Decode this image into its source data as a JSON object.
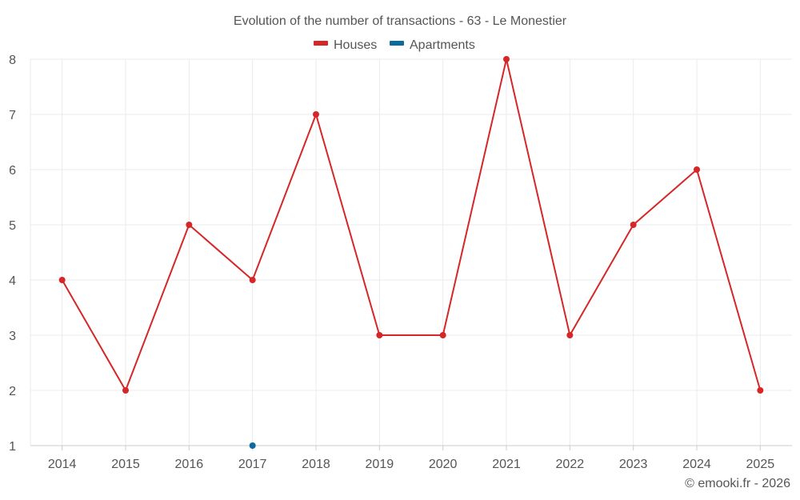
{
  "chart_data": {
    "type": "line",
    "title": "Evolution of the number of transactions - 63 - Le Monestier",
    "categories": [
      "2014",
      "2015",
      "2016",
      "2017",
      "2018",
      "2019",
      "2020",
      "2021",
      "2022",
      "2023",
      "2024",
      "2025"
    ],
    "ylim": [
      1,
      8
    ],
    "yticks": [
      "1",
      "2",
      "3",
      "4",
      "5",
      "6",
      "7",
      "8"
    ],
    "grid": true,
    "legend_position": "top-center",
    "series": [
      {
        "name": "Houses",
        "color": "#d62728",
        "values": [
          4,
          2,
          5,
          4,
          7,
          3,
          3,
          8,
          3,
          5,
          6,
          2
        ]
      },
      {
        "name": "Apartments",
        "color": "#0d6aa0",
        "values": [
          null,
          null,
          null,
          1,
          null,
          null,
          null,
          null,
          null,
          null,
          null,
          null
        ]
      }
    ]
  },
  "footer": {
    "credit": "© emooki.fr - 2026"
  }
}
